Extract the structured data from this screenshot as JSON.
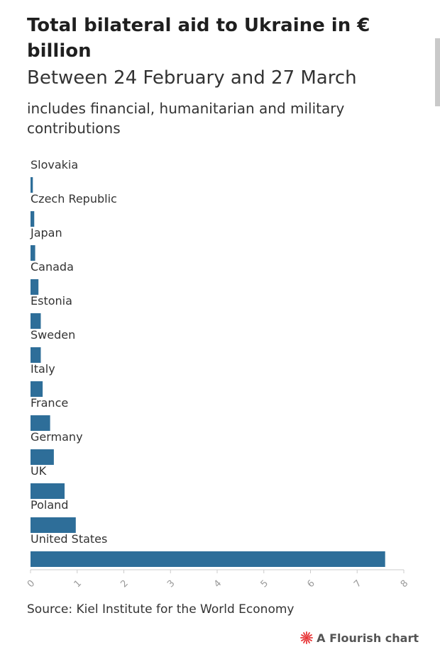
{
  "header": {
    "title": "Total bilateral aid to Ukraine in € billion",
    "subtitle": "Between 24 February and 27 March",
    "description": "includes financial, humanitarian and military contributions"
  },
  "footer": {
    "source": "Source: Kiel Institute for the World Economy",
    "branding": "A Flourish chart"
  },
  "colors": {
    "bar": "#2e6e99",
    "axis": "#cccccc",
    "tick_text": "#9a9a9a",
    "brand": "#e8393b"
  },
  "chart_data": {
    "type": "bar",
    "orientation": "horizontal",
    "title": "Total bilateral aid to Ukraine in € billion",
    "subtitle": "Between 24 February and 27 March",
    "categories": [
      "Slovakia",
      "Czech Republic",
      "Japan",
      "Canada",
      "Estonia",
      "Sweden",
      "Italy",
      "France",
      "Germany",
      "UK",
      "Poland",
      "United States"
    ],
    "values": [
      0.05,
      0.08,
      0.1,
      0.17,
      0.22,
      0.22,
      0.26,
      0.42,
      0.5,
      0.73,
      0.97,
      7.6
    ],
    "xlim": [
      0,
      8
    ],
    "xticks": [
      "0",
      "1",
      "2",
      "3",
      "4",
      "5",
      "6",
      "7",
      "8"
    ],
    "xlabel": "",
    "ylabel": "",
    "grid": false,
    "legend": "none"
  }
}
